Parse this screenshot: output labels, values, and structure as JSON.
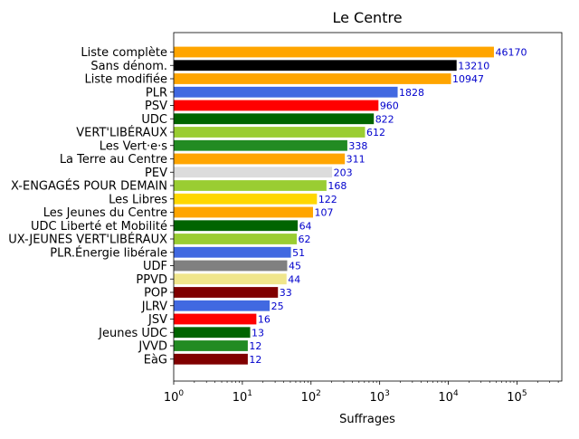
{
  "chart_data": {
    "type": "bar",
    "orientation": "horizontal",
    "title": "Le Centre",
    "xlabel": "Suffrages",
    "ylabel": "",
    "x_scale": "log",
    "xlim": [
      1,
      450000
    ],
    "x_ticks": [
      {
        "value": 1,
        "base": "10",
        "exp": "0"
      },
      {
        "value": 10,
        "base": "10",
        "exp": "1"
      },
      {
        "value": 100,
        "base": "10",
        "exp": "2"
      },
      {
        "value": 1000,
        "base": "10",
        "exp": "3"
      },
      {
        "value": 10000,
        "base": "10",
        "exp": "4"
      },
      {
        "value": 100000,
        "base": "10",
        "exp": "5"
      }
    ],
    "grid": false,
    "value_label_color": "#0000cc",
    "bars": [
      {
        "label": "Liste complète",
        "value": 46170,
        "display": "46170",
        "color": "#FFA500"
      },
      {
        "label": "Sans dénom.",
        "value": 13210,
        "display": "13210",
        "color": "#000000"
      },
      {
        "label": "Liste modifiée",
        "value": 10947,
        "display": "10947",
        "color": "#FFA500"
      },
      {
        "label": "PLR",
        "value": 1828,
        "display": "1828",
        "color": "#4169E1"
      },
      {
        "label": "PSV",
        "value": 960,
        "display": "960",
        "color": "#FF0000"
      },
      {
        "label": "UDC",
        "value": 822,
        "display": "822",
        "color": "#006400"
      },
      {
        "label": "VERT'LIBÉRAUX",
        "value": 612,
        "display": "612",
        "color": "#9ACD32"
      },
      {
        "label": "Les Vert·e·s",
        "value": 338,
        "display": "338",
        "color": "#228B22"
      },
      {
        "label": "La Terre au Centre",
        "value": 311,
        "display": "311",
        "color": "#FFA500"
      },
      {
        "label": "PEV",
        "value": 203,
        "display": "203",
        "color": "#DCDCDC"
      },
      {
        "label": "X-ENGAGÉS POUR DEMAIN",
        "value": 168,
        "display": "168",
        "color": "#9ACD32"
      },
      {
        "label": "Les Libres",
        "value": 122,
        "display": "122",
        "color": "#FFD700"
      },
      {
        "label": "Les Jeunes du Centre",
        "value": 107,
        "display": "107",
        "color": "#FFA500"
      },
      {
        "label": "UDC Liberté et Mobilité",
        "value": 64,
        "display": "64",
        "color": "#006400"
      },
      {
        "label": "UX-JEUNES VERT'LIBÉRAUX",
        "value": 62,
        "display": "62",
        "color": "#9ACD32"
      },
      {
        "label": "PLR.Énergie libérale",
        "value": 51,
        "display": "51",
        "color": "#4169E1"
      },
      {
        "label": "UDF",
        "value": 45,
        "display": "45",
        "color": "#808080"
      },
      {
        "label": "PPVD",
        "value": 44,
        "display": "44",
        "color": "#F0E68C"
      },
      {
        "label": "POP",
        "value": 33,
        "display": "33",
        "color": "#800000"
      },
      {
        "label": "JLRV",
        "value": 25,
        "display": "25",
        "color": "#4169E1"
      },
      {
        "label": "JSV",
        "value": 16,
        "display": "16",
        "color": "#FF0000"
      },
      {
        "label": "Jeunes UDC",
        "value": 13,
        "display": "13",
        "color": "#006400"
      },
      {
        "label": "JVVD",
        "value": 12,
        "display": "12",
        "color": "#228B22"
      },
      {
        "label": "EàG",
        "value": 12,
        "display": "12",
        "color": "#800000"
      }
    ]
  }
}
